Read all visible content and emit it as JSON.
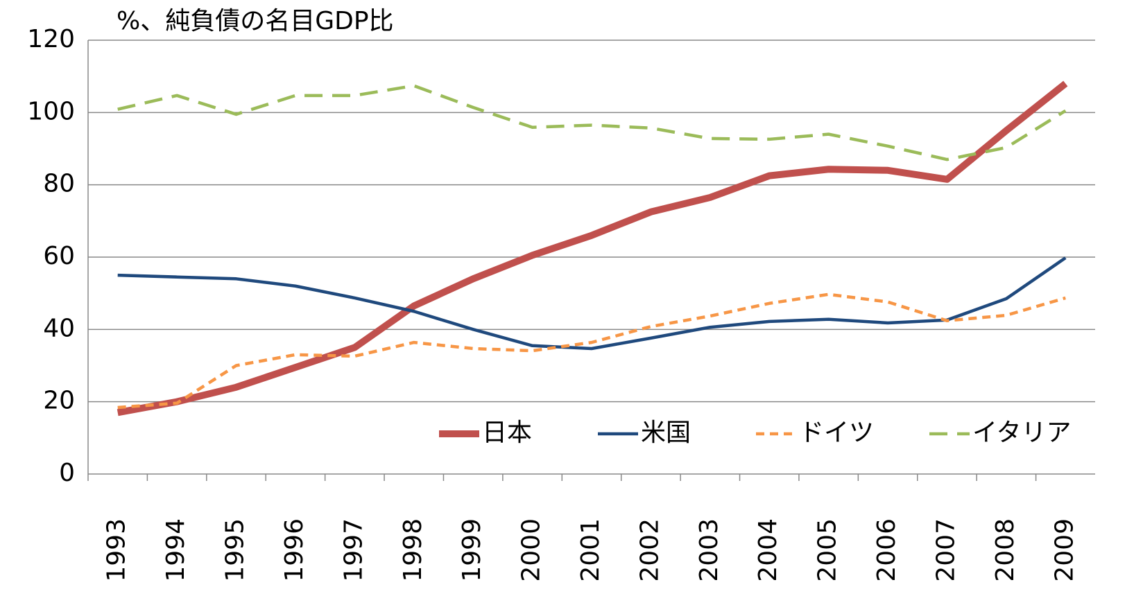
{
  "chart_data": {
    "type": "line",
    "title": "%、純負債の名目GDP比",
    "categories": [
      "1993",
      "1994",
      "1995",
      "1996",
      "1997",
      "1998",
      "1999",
      "2000",
      "2001",
      "2002",
      "2003",
      "2004",
      "2005",
      "2006",
      "2007",
      "2008",
      "2009"
    ],
    "series": [
      {
        "name": "日本",
        "color": "#c0504d",
        "dash": "solid",
        "width": 10,
        "values": [
          17,
          20,
          24,
          29.5,
          35,
          46.5,
          54,
          60.5,
          66,
          72.5,
          76.5,
          82.5,
          84.3,
          84,
          81.5,
          95,
          108
        ]
      },
      {
        "name": "米国",
        "color": "#1f497d",
        "dash": "solid",
        "width": 4.5,
        "values": [
          55,
          54.5,
          54,
          52,
          48.7,
          45,
          40,
          35.5,
          34.7,
          37.6,
          40.6,
          42.2,
          42.8,
          41.8,
          42.6,
          48.5,
          59.8
        ]
      },
      {
        "name": "ドイツ",
        "color": "#f79646",
        "dash": "short",
        "width": 4.5,
        "values": [
          18.4,
          19.6,
          30,
          33,
          32.6,
          36.4,
          34.7,
          34.1,
          36.4,
          40.8,
          43.7,
          47.2,
          49.7,
          47.6,
          42.4,
          43.9,
          48.7
        ]
      },
      {
        "name": "イタリア",
        "color": "#9bbb59",
        "dash": "long",
        "width": 4.5,
        "values": [
          100.9,
          104.7,
          99.5,
          104.7,
          104.7,
          107.4,
          101.4,
          95.9,
          96.5,
          95.7,
          92.8,
          92.6,
          94,
          90.7,
          87,
          90.3,
          100.5
        ]
      }
    ],
    "ylim": [
      0,
      120
    ],
    "yticks": [
      0,
      20,
      40,
      60,
      80,
      100,
      120
    ],
    "grid": true,
    "legend": "bottom-right"
  }
}
